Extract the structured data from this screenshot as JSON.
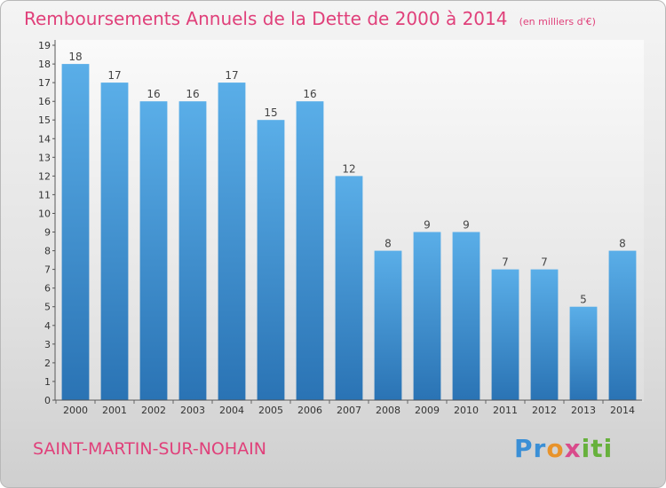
{
  "header": {
    "title": "Remboursements Annuels de la Dette de 2000 à 2014",
    "subtitle": "(en milliers d'€)"
  },
  "footer": {
    "town": "SAINT-MARTIN-SUR-NOHAIN",
    "brand": "Proxiti"
  },
  "colors": {
    "title": "#e0407a",
    "bar_top": "#5aaee8",
    "bar_bottom": "#2a73b4"
  },
  "chart_data": {
    "type": "bar",
    "title": "Remboursements Annuels de la Dette de 2000 à 2014",
    "subtitle": "(en milliers d'€)",
    "categories": [
      "2000",
      "2001",
      "2002",
      "2003",
      "2004",
      "2005",
      "2006",
      "2007",
      "2008",
      "2009",
      "2010",
      "2011",
      "2012",
      "2013",
      "2014"
    ],
    "values": [
      18,
      17,
      16,
      16,
      17,
      15,
      16,
      12,
      8,
      9,
      9,
      7,
      7,
      5,
      8
    ],
    "ylim": [
      0,
      19
    ],
    "yticks": [
      0,
      1,
      2,
      3,
      4,
      5,
      6,
      7,
      8,
      9,
      10,
      11,
      12,
      13,
      14,
      15,
      16,
      17,
      18,
      19
    ],
    "grid": false,
    "data_labels": true
  }
}
